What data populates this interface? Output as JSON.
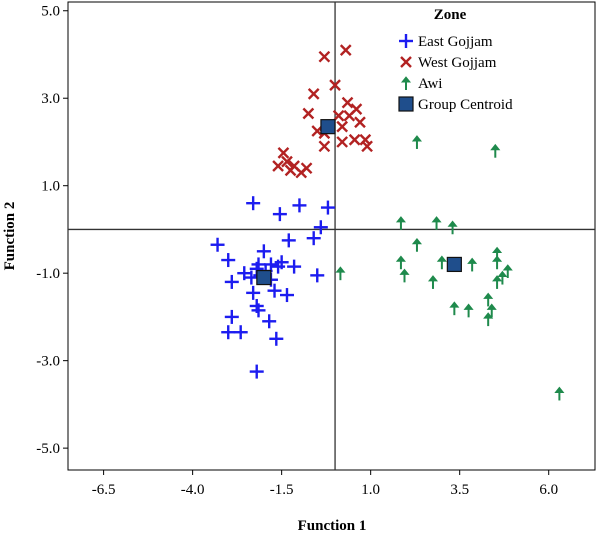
{
  "chart_data": {
    "type": "scatter",
    "xlabel": "Function 1",
    "ylabel": "Function 2",
    "xlim": [
      -7.5,
      7.3
    ],
    "ylim": [
      -5.5,
      5.2
    ],
    "xticks": [
      -6.5,
      -4.0,
      -1.5,
      1.0,
      3.5,
      6.0
    ],
    "yticks": [
      5.0,
      3.0,
      1.0,
      -1.0,
      -3.0,
      -5.0
    ],
    "xtick_labels": [
      "-6.5",
      "-4.0",
      "-1.5",
      "1.0",
      "3.5",
      "6.0"
    ],
    "ytick_labels": [
      "5.0",
      "3.0",
      "1.0",
      "-1.0",
      "-3.0",
      "-5.0"
    ],
    "reference_lines": {
      "x": 0,
      "y": 0
    },
    "legend": {
      "title": "Zone",
      "position": "top-right",
      "entries": [
        "East Gojjam",
        "West Gojjam",
        "Awi",
        "Group Centroid"
      ]
    },
    "series": [
      {
        "name": "East Gojjam",
        "marker": "plus",
        "color": "#1c1cf0",
        "points": [
          [
            -2.3,
            0.6
          ],
          [
            -1.0,
            0.55
          ],
          [
            -1.55,
            0.35
          ],
          [
            -0.2,
            0.5
          ],
          [
            -0.4,
            0.05
          ],
          [
            -3.3,
            -0.35
          ],
          [
            -3.0,
            -0.7
          ],
          [
            -1.3,
            -0.25
          ],
          [
            -2.0,
            -0.5
          ],
          [
            -1.8,
            -0.8
          ],
          [
            -1.5,
            -0.75
          ],
          [
            -2.55,
            -1.0
          ],
          [
            -2.35,
            -1.1
          ],
          [
            -2.1,
            -1.05
          ],
          [
            -1.8,
            -1.15
          ],
          [
            -1.95,
            -0.95
          ],
          [
            -1.6,
            -0.85
          ],
          [
            -2.15,
            -0.8
          ],
          [
            -2.2,
            -0.9
          ],
          [
            -1.15,
            -0.85
          ],
          [
            -0.6,
            -0.2
          ],
          [
            -0.5,
            -1.05
          ],
          [
            -2.3,
            -1.45
          ],
          [
            -1.7,
            -1.4
          ],
          [
            -1.35,
            -1.5
          ],
          [
            -2.2,
            -1.75
          ],
          [
            -2.15,
            -1.85
          ],
          [
            -1.85,
            -2.1
          ],
          [
            -2.9,
            -2.0
          ],
          [
            -3.0,
            -2.35
          ],
          [
            -2.65,
            -2.35
          ],
          [
            -1.65,
            -2.5
          ],
          [
            -2.2,
            -3.25
          ],
          [
            -2.9,
            -1.2
          ]
        ]
      },
      {
        "name": "West Gojjam",
        "marker": "x",
        "color": "#b22222",
        "points": [
          [
            0.3,
            4.1
          ],
          [
            -0.3,
            3.95
          ],
          [
            0.0,
            3.3
          ],
          [
            -0.6,
            3.1
          ],
          [
            0.35,
            2.9
          ],
          [
            0.6,
            2.75
          ],
          [
            -0.75,
            2.65
          ],
          [
            0.7,
            2.45
          ],
          [
            0.1,
            2.6
          ],
          [
            0.4,
            2.6
          ],
          [
            -0.5,
            2.25
          ],
          [
            0.2,
            2.35
          ],
          [
            -0.3,
            2.2
          ],
          [
            0.85,
            2.05
          ],
          [
            -0.3,
            1.9
          ],
          [
            0.2,
            2.0
          ],
          [
            0.9,
            1.9
          ],
          [
            0.55,
            2.05
          ],
          [
            -1.45,
            1.75
          ],
          [
            -1.35,
            1.55
          ],
          [
            -1.6,
            1.45
          ],
          [
            -1.15,
            1.45
          ],
          [
            -1.25,
            1.35
          ],
          [
            -0.95,
            1.3
          ],
          [
            -0.8,
            1.4
          ]
        ]
      },
      {
        "name": "Awi",
        "marker": "pin",
        "color": "#1f8a4c",
        "points": [
          [
            2.3,
            2.0
          ],
          [
            4.5,
            1.8
          ],
          [
            1.85,
            0.15
          ],
          [
            2.85,
            0.15
          ],
          [
            3.3,
            0.05
          ],
          [
            2.3,
            -0.35
          ],
          [
            1.85,
            -0.75
          ],
          [
            3.0,
            -0.75
          ],
          [
            4.55,
            -0.55
          ],
          [
            4.55,
            -0.75
          ],
          [
            3.85,
            -0.8
          ],
          [
            4.85,
            -0.95
          ],
          [
            0.15,
            -1.0
          ],
          [
            1.95,
            -1.05
          ],
          [
            2.75,
            -1.2
          ],
          [
            4.7,
            -1.1
          ],
          [
            4.55,
            -1.2
          ],
          [
            4.3,
            -1.6
          ],
          [
            3.35,
            -1.8
          ],
          [
            3.75,
            -1.85
          ],
          [
            4.4,
            -1.85
          ],
          [
            4.3,
            -2.05
          ],
          [
            6.3,
            -3.75
          ]
        ]
      }
    ],
    "centroids": [
      {
        "name": "West Gojjam",
        "x": -0.2,
        "y": 2.35
      },
      {
        "name": "East Gojjam",
        "x": -2.0,
        "y": -1.1
      },
      {
        "name": "Awi",
        "x": 3.35,
        "y": -0.8
      }
    ],
    "centroid_color": "#1f4e8c"
  }
}
